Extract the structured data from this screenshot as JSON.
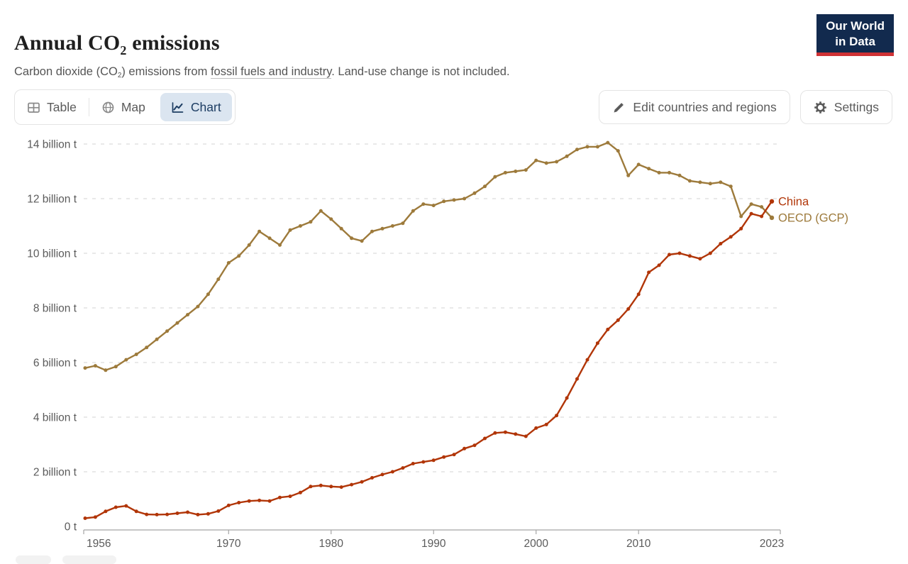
{
  "header": {
    "title": {
      "pre": "Annual CO",
      "sub": "2",
      "post": " emissions"
    },
    "subtitle": {
      "pre": "Carbon dioxide (CO",
      "sub": "2",
      "mid": ") emissions from ",
      "link": "fossil fuels and industry",
      "post": ". Land-use change is not included."
    },
    "logo": {
      "line1": "Our World",
      "line2": "in Data"
    }
  },
  "toolbar": {
    "tabs": [
      {
        "label": "Table",
        "icon": "table-grid-icon",
        "active": false
      },
      {
        "label": "Map",
        "icon": "globe-icon",
        "active": false
      },
      {
        "label": "Chart",
        "icon": "line-chart-icon",
        "active": true
      }
    ],
    "edit_button": {
      "label": "Edit countries and regions",
      "icon": "pencil-icon"
    },
    "settings_button": {
      "label": "Settings",
      "icon": "gear-icon"
    }
  },
  "chart_data": {
    "type": "line",
    "title": "Annual CO₂ emissions",
    "unit": "billion tonnes of CO₂ per year",
    "x_start": 1956,
    "x_end": 2023,
    "x_tick_years": [
      1956,
      1970,
      1980,
      1990,
      2000,
      2010,
      2023
    ],
    "y_ticks": [
      {
        "value": 0,
        "label": "0 t"
      },
      {
        "value": 2,
        "label": "2 billion t"
      },
      {
        "value": 4,
        "label": "4 billion t"
      },
      {
        "value": 6,
        "label": "6 billion t"
      },
      {
        "value": 8,
        "label": "8 billion t"
      },
      {
        "value": 10,
        "label": "10 billion t"
      },
      {
        "value": 12,
        "label": "12 billion t"
      },
      {
        "value": 14,
        "label": "14 billion t"
      }
    ],
    "ylim": [
      0,
      14.5
    ],
    "grid": "dashed-horizontal",
    "legend_position": "end-of-line",
    "series": [
      {
        "name": "OECD (GCP)",
        "color": "#9d7a3b",
        "values": [
          5.8,
          5.88,
          5.72,
          5.85,
          6.1,
          6.3,
          6.55,
          6.85,
          7.15,
          7.45,
          7.75,
          8.05,
          8.5,
          9.05,
          9.65,
          9.9,
          10.3,
          10.8,
          10.55,
          10.3,
          10.85,
          11.0,
          11.15,
          11.55,
          11.25,
          10.9,
          10.55,
          10.45,
          10.8,
          10.9,
          11.0,
          11.1,
          11.55,
          11.8,
          11.75,
          11.9,
          11.95,
          12.0,
          12.2,
          12.45,
          12.8,
          12.95,
          13.0,
          13.05,
          13.4,
          13.3,
          13.35,
          13.55,
          13.8,
          13.9,
          13.9,
          14.05,
          13.75,
          12.85,
          13.25,
          13.1,
          12.95,
          12.95,
          12.85,
          12.65,
          12.6,
          12.55,
          12.6,
          12.45,
          11.35,
          11.8,
          11.7,
          11.3
        ]
      },
      {
        "name": "China",
        "color": "#b13507",
        "values": [
          0.3,
          0.34,
          0.55,
          0.7,
          0.75,
          0.55,
          0.44,
          0.43,
          0.44,
          0.48,
          0.52,
          0.43,
          0.46,
          0.56,
          0.77,
          0.87,
          0.93,
          0.95,
          0.93,
          1.06,
          1.1,
          1.24,
          1.46,
          1.5,
          1.46,
          1.44,
          1.53,
          1.63,
          1.78,
          1.9,
          2.0,
          2.14,
          2.3,
          2.36,
          2.42,
          2.54,
          2.63,
          2.85,
          2.97,
          3.22,
          3.42,
          3.45,
          3.38,
          3.3,
          3.6,
          3.73,
          4.06,
          4.7,
          5.4,
          6.1,
          6.71,
          7.21,
          7.55,
          7.96,
          8.5,
          9.3,
          9.56,
          9.95,
          10.0,
          9.9,
          9.8,
          10.0,
          10.35,
          10.6,
          10.9,
          11.45,
          11.35,
          11.9
        ]
      }
    ]
  },
  "colors": {
    "tab_active_bg": "#dbe5f0",
    "tab_active_text": "#1d3d63",
    "muted_text": "#5b5b5b",
    "gridline": "#dcdcdc",
    "axis": "#a5a5a5",
    "logo_bg": "#122a4e",
    "logo_accent": "#cf3235",
    "series_china": "#b13507",
    "series_oecd": "#9d7a3b"
  }
}
